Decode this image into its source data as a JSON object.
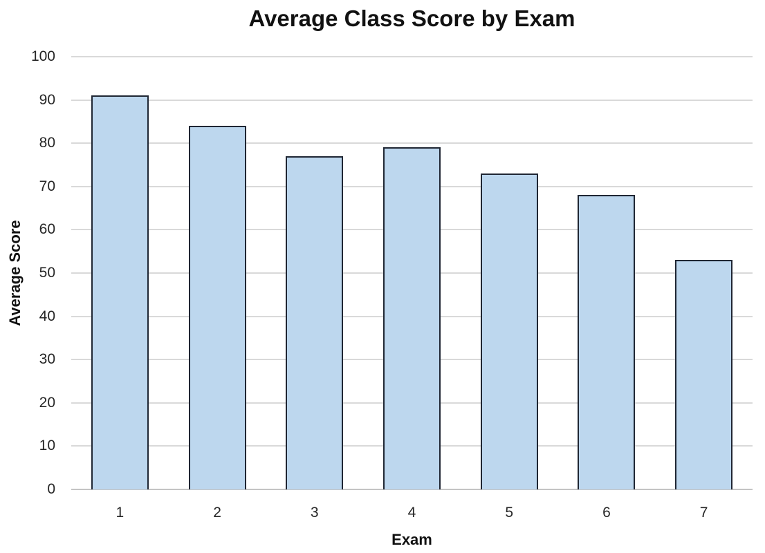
{
  "chart_data": {
    "type": "bar",
    "title": "Average Class Score by Exam",
    "xlabel": "Exam",
    "ylabel": "Average Score",
    "categories": [
      "1",
      "2",
      "3",
      "4",
      "5",
      "6",
      "7"
    ],
    "values": [
      91,
      84,
      77,
      79,
      73,
      68,
      53
    ],
    "ylim": [
      0,
      100
    ],
    "yticks": [
      0,
      10,
      20,
      30,
      40,
      50,
      60,
      70,
      80,
      90,
      100
    ],
    "grid": true,
    "legend": false,
    "colors": {
      "bar_fill": "#BDD7EE",
      "bar_border": "#1F2633",
      "gridline": "#D9D9D9",
      "axis_line": "#C4C4C4",
      "text": "#262626",
      "title_text": "#111111",
      "background": "#FFFFFF"
    }
  }
}
